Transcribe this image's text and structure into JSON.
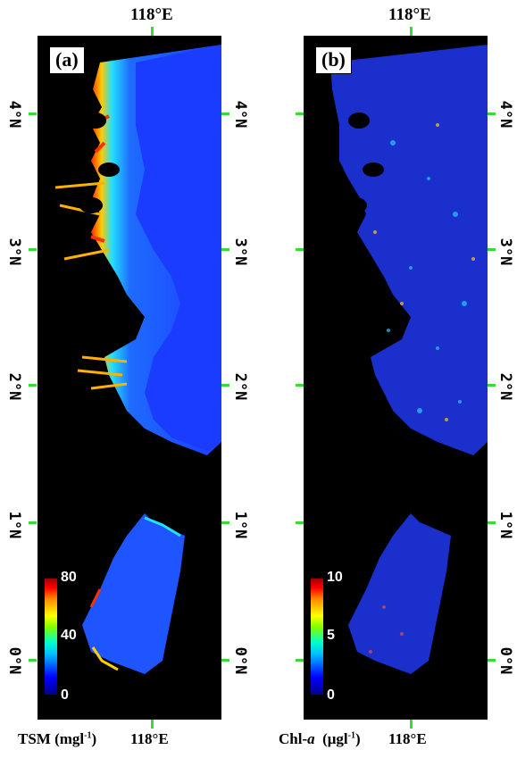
{
  "top_lon_a": "118°E",
  "top_lon_b": "118°E",
  "panels": {
    "a": {
      "label": "(a)",
      "cbar_max": "80",
      "cbar_mid": "40",
      "cbar_min": "0",
      "unit_pre": "TSM (mgl",
      "unit_sup": "-1",
      "unit_post": ")",
      "lon": "118°E"
    },
    "b": {
      "label": "(b)",
      "cbar_max": "10",
      "cbar_mid": "5",
      "cbar_min": "0",
      "unit_pre": "Chl-",
      "unit_ital": "a",
      "unit_mid": "  (μgl",
      "unit_sup": "-1",
      "unit_post": ")",
      "lon": "118°E"
    }
  },
  "lat_labels": [
    "4°N",
    "3°N",
    "2°N",
    "1°N",
    "0°N"
  ],
  "colors": {
    "tick": "#33dd33",
    "water": "#1a3cff",
    "land": "#000000"
  }
}
